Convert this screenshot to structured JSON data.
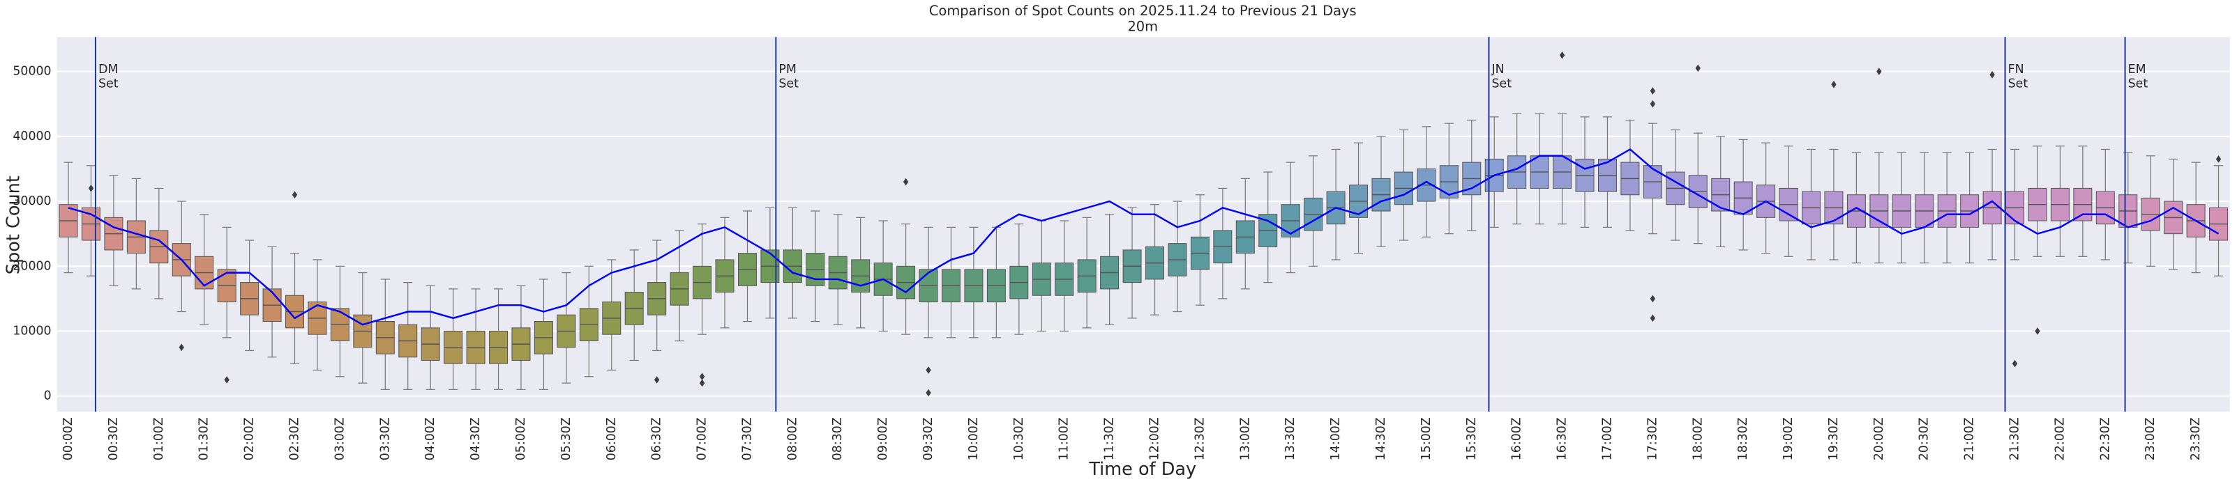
{
  "chart_data": {
    "type": "boxplot",
    "title": "Comparison of Spot Counts on 2025.11.24 to Previous 21 Days",
    "subtitle": "20m",
    "x_label": "Time of Day",
    "y_label": "Spot Count",
    "categories": [
      "00:00Z",
      null,
      "00:30Z",
      null,
      "01:00Z",
      null,
      "01:30Z",
      null,
      "02:00Z",
      null,
      "02:30Z",
      null,
      "03:00Z",
      null,
      "03:30Z",
      null,
      "04:00Z",
      null,
      "04:30Z",
      null,
      "05:00Z",
      null,
      "05:30Z",
      null,
      "06:00Z",
      null,
      "06:30Z",
      null,
      "07:00Z",
      null,
      "07:30Z",
      null,
      "08:00Z",
      null,
      "08:30Z",
      null,
      "09:00Z",
      null,
      "09:30Z",
      null,
      "10:00Z",
      null,
      "10:30Z",
      null,
      "11:00Z",
      null,
      "11:30Z",
      null,
      "12:00Z",
      null,
      "12:30Z",
      null,
      "13:00Z",
      null,
      "13:30Z",
      null,
      "14:00Z",
      null,
      "14:30Z",
      null,
      "15:00Z",
      null,
      "15:30Z",
      null,
      "16:00Z",
      null,
      "16:30Z",
      null,
      "17:00Z",
      null,
      "17:30Z",
      null,
      "18:00Z",
      null,
      "18:30Z",
      null,
      "19:00Z",
      null,
      "19:30Z",
      null,
      "20:00Z",
      null,
      "20:30Z",
      null,
      "21:00Z",
      null,
      "21:30Z",
      null,
      "22:00Z",
      null,
      "22:30Z",
      null,
      "23:00Z",
      null,
      "23:30Z",
      null
    ],
    "box": {
      "whislo": [
        19000,
        18500,
        17000,
        16500,
        15000,
        13000,
        11000,
        9000,
        7000,
        6000,
        5000,
        4000,
        3000,
        2000,
        1000,
        1000,
        1000,
        1000,
        1000,
        1000,
        1000,
        1000,
        2000,
        3000,
        4000,
        5500,
        7000,
        8500,
        9500,
        10500,
        11500,
        12000,
        12000,
        11500,
        11000,
        10500,
        10000,
        9500,
        9000,
        9000,
        9000,
        9000,
        9500,
        10000,
        10000,
        10500,
        11000,
        12000,
        12500,
        13000,
        14000,
        15000,
        16500,
        17500,
        19000,
        20000,
        21000,
        22000,
        23000,
        24000,
        24500,
        25000,
        25500,
        26000,
        26500,
        26500,
        26500,
        26000,
        26000,
        25500,
        25000,
        24000,
        23500,
        23000,
        22500,
        22000,
        21500,
        21000,
        21000,
        20500,
        20500,
        20500,
        20500,
        20500,
        20500,
        21000,
        21000,
        21500,
        21500,
        21500,
        21000,
        20500,
        20000,
        19500,
        19000,
        18500
      ],
      "q1": [
        24500,
        24000,
        22500,
        22000,
        20500,
        18500,
        16500,
        14500,
        12500,
        11500,
        10500,
        9500,
        8500,
        7500,
        6500,
        6000,
        5500,
        5000,
        5000,
        5000,
        5500,
        6500,
        7500,
        8500,
        9500,
        11000,
        12500,
        14000,
        15000,
        16000,
        17000,
        17500,
        17500,
        17000,
        16500,
        16000,
        15500,
        15000,
        14500,
        14500,
        14500,
        14500,
        15000,
        15500,
        15500,
        16000,
        16500,
        17500,
        18000,
        18500,
        19500,
        20500,
        22000,
        23000,
        24500,
        25500,
        26500,
        27500,
        28500,
        29500,
        30000,
        30500,
        31000,
        31500,
        32000,
        32000,
        32000,
        31500,
        31500,
        31000,
        30500,
        29500,
        29000,
        28500,
        28000,
        27500,
        27000,
        26500,
        26500,
        26000,
        26000,
        26000,
        26000,
        26000,
        26000,
        26500,
        26500,
        27000,
        27000,
        27000,
        26500,
        26000,
        25500,
        25000,
        24500,
        24000
      ],
      "med": [
        27000,
        26500,
        25000,
        24500,
        23000,
        21000,
        19000,
        17000,
        15000,
        14000,
        13000,
        12000,
        11000,
        10000,
        9000,
        8500,
        8000,
        7500,
        7500,
        7500,
        8000,
        9000,
        10000,
        11000,
        12000,
        13500,
        15000,
        16500,
        17500,
        18500,
        19500,
        20000,
        20000,
        19500,
        19000,
        18500,
        18000,
        17500,
        17000,
        17000,
        17000,
        17000,
        17500,
        18000,
        18000,
        18500,
        19000,
        20000,
        20500,
        21000,
        22000,
        23000,
        24500,
        25500,
        27000,
        28000,
        29000,
        30000,
        31000,
        32000,
        32500,
        33000,
        33500,
        34000,
        34500,
        34500,
        34500,
        34000,
        34000,
        33500,
        33000,
        32000,
        31500,
        31000,
        30500,
        30000,
        29500,
        29000,
        29000,
        28500,
        28500,
        28500,
        28500,
        28500,
        28500,
        29000,
        29000,
        29500,
        29500,
        29500,
        29000,
        28500,
        28000,
        27500,
        27000,
        26500
      ],
      "q3": [
        29500,
        29000,
        27500,
        27000,
        25500,
        23500,
        21500,
        19500,
        17500,
        16500,
        15500,
        14500,
        13500,
        12500,
        11500,
        11000,
        10500,
        10000,
        10000,
        10000,
        10500,
        11500,
        12500,
        13500,
        14500,
        16000,
        17500,
        19000,
        20000,
        21000,
        22000,
        22500,
        22500,
        22000,
        21500,
        21000,
        20500,
        20000,
        19500,
        19500,
        19500,
        19500,
        20000,
        20500,
        20500,
        21000,
        21500,
        22500,
        23000,
        23500,
        24500,
        25500,
        27000,
        28000,
        29500,
        30500,
        31500,
        32500,
        33500,
        34500,
        35000,
        35500,
        36000,
        36500,
        37000,
        37000,
        37000,
        36500,
        36500,
        36000,
        35500,
        34500,
        34000,
        33500,
        33000,
        32500,
        32000,
        31500,
        31500,
        31000,
        31000,
        31000,
        31000,
        31000,
        31000,
        31500,
        31500,
        32000,
        32000,
        32000,
        31500,
        31000,
        30500,
        30000,
        29500,
        29000
      ],
      "whishi": [
        36000,
        35500,
        34000,
        33500,
        32000,
        30000,
        28000,
        26000,
        24000,
        23000,
        22000,
        21000,
        20000,
        19000,
        18000,
        17500,
        17000,
        16500,
        16500,
        16500,
        17000,
        18000,
        19000,
        20000,
        21000,
        22500,
        24000,
        25500,
        26500,
        27500,
        28500,
        29000,
        29000,
        28500,
        28000,
        27500,
        27000,
        26500,
        26000,
        26000,
        26000,
        26000,
        26500,
        27000,
        27000,
        27500,
        28000,
        29000,
        29500,
        30000,
        31000,
        32000,
        33500,
        34500,
        36000,
        37000,
        38000,
        39000,
        40000,
        41000,
        41500,
        42000,
        42500,
        43000,
        43500,
        43500,
        43500,
        43000,
        43000,
        42500,
        42000,
        41000,
        40500,
        40000,
        39500,
        39000,
        38500,
        38000,
        38000,
        37500,
        37500,
        37500,
        37500,
        37500,
        37500,
        38000,
        38000,
        38500,
        38500,
        38500,
        38000,
        37500,
        37000,
        36500,
        36000,
        35500
      ]
    },
    "palette": [
      "#d68f8f",
      "#c48e5e",
      "#9c9a4c",
      "#6a9a5a",
      "#5a9a82",
      "#5a9aa6",
      "#8a9fd4",
      "#ac98d4",
      "#c694cc",
      "#d491b2"
    ],
    "outliers": {
      "x": [
        1,
        5,
        7,
        10,
        26,
        28,
        28,
        37,
        38,
        38,
        66,
        70,
        70,
        70,
        70,
        72,
        78,
        80,
        85,
        86,
        87,
        95
      ],
      "y": [
        32000,
        7500,
        2500,
        31000,
        2500,
        2000,
        3000,
        33000,
        500,
        4000,
        52500,
        47000,
        45000,
        15000,
        12000,
        50500,
        48000,
        50000,
        49500,
        5000,
        10000,
        36500
      ]
    },
    "line": {
      "color": "#0000ff",
      "values": [
        29000,
        28000,
        26000,
        25000,
        24000,
        21000,
        17000,
        19000,
        19000,
        16000,
        12000,
        14000,
        13000,
        11000,
        12000,
        13000,
        13000,
        12000,
        13000,
        14000,
        14000,
        13000,
        14000,
        17000,
        19000,
        20000,
        21000,
        23000,
        25000,
        26000,
        24000,
        22000,
        19000,
        18000,
        18000,
        17000,
        18000,
        16000,
        19000,
        21000,
        22000,
        26000,
        28000,
        27000,
        28000,
        29000,
        30000,
        28000,
        28000,
        26000,
        27000,
        29000,
        28000,
        27000,
        25000,
        27000,
        29000,
        28000,
        30000,
        31000,
        33000,
        31000,
        32000,
        34000,
        35000,
        37000,
        37000,
        35000,
        36000,
        38000,
        35000,
        33000,
        31000,
        29000,
        28000,
        30000,
        28000,
        26000,
        27000,
        29000,
        27000,
        25000,
        26000,
        28000,
        28000,
        30000,
        27000,
        25000,
        26000,
        28000,
        28000,
        26000,
        27000,
        29000,
        27000,
        25000
      ]
    },
    "annotations": [
      {
        "x": 1.2,
        "lines": [
          "DM",
          "Set"
        ]
      },
      {
        "x": 31.26,
        "lines": [
          "PM",
          "Set"
        ]
      },
      {
        "x": 62.76,
        "lines": [
          "JN",
          "Set"
        ]
      },
      {
        "x": 85.57,
        "lines": [
          "FN",
          "Set"
        ]
      },
      {
        "x": 90.87,
        "lines": [
          "EM",
          "Set"
        ]
      }
    ],
    "annotation_color": "#1f3a9e",
    "ylim": [
      -2400,
      55300
    ],
    "yticks": [
      0,
      10000,
      20000,
      30000,
      40000,
      50000
    ],
    "grid": true,
    "background": "#eaeaf2"
  }
}
